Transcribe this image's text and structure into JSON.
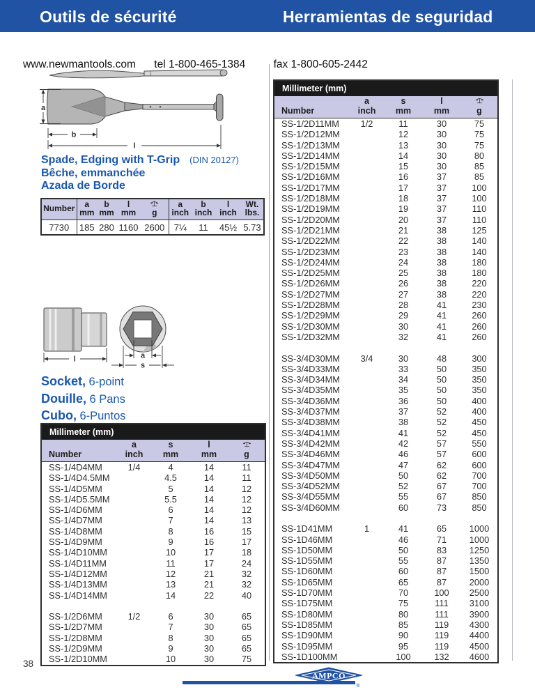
{
  "header": {
    "title_left": "Outils de sécurité",
    "title_right": "Herramientas de seguridad"
  },
  "contact": {
    "website": "www.newmantools.com",
    "tel": "tel 1-800-465-1384",
    "fax": "fax 1-800-605-2442"
  },
  "spade": {
    "title": "Spade, Edging with T-Grip",
    "din": "(DIN 20127)",
    "subtitle_fr": "Bêche, emmanchée",
    "subtitle_es": "Azada de Borde",
    "diagram_labels": {
      "a": "a",
      "b": "b",
      "l": "l"
    },
    "table": {
      "cols": [
        {
          "top": "",
          "bottom": "Number"
        },
        {
          "top": "a",
          "bottom": "mm"
        },
        {
          "top": "b",
          "bottom": "mm"
        },
        {
          "top": "l",
          "bottom": "mm"
        },
        {
          "icon": "scale-icon",
          "bottom": "g"
        },
        {
          "top": "a",
          "bottom": "inch"
        },
        {
          "top": "b",
          "bottom": "inch"
        },
        {
          "top": "l",
          "bottom": "inch"
        },
        {
          "top": "Wt.",
          "bottom": "lbs."
        }
      ],
      "rows": [
        [
          "7730",
          "185",
          "280",
          "1160",
          "2600",
          "7¼",
          "11",
          "45½",
          "5.73"
        ]
      ]
    }
  },
  "socket": {
    "lines": [
      {
        "bold": "Socket,",
        "rest": "6-point"
      },
      {
        "bold": "Douille,",
        "rest": "6 Pans"
      },
      {
        "bold": "Cubo,",
        "rest": "6-Puntos"
      }
    ],
    "diagram_labels": {
      "l": "l",
      "a": "a",
      "s": "s"
    }
  },
  "left_table": {
    "band": "Millimeter (mm)",
    "cols": [
      {
        "top": "",
        "bottom": "Number",
        "align": "left"
      },
      {
        "top": "a",
        "bottom": "inch"
      },
      {
        "top": "s",
        "bottom": "mm"
      },
      {
        "top": "l",
        "bottom": "mm"
      },
      {
        "icon": "scale-icon",
        "bottom": "g"
      }
    ],
    "rows": [
      [
        "SS-1/4D4MM",
        "1/4",
        "4",
        "14",
        "11"
      ],
      [
        "SS-1/4D4.5MM",
        "",
        "4.5",
        "14",
        "11"
      ],
      [
        "SS-1/4D5MM",
        "",
        "5",
        "14",
        "12"
      ],
      [
        "SS-1/4D5.5MM",
        "",
        "5.5",
        "14",
        "12"
      ],
      [
        "SS-1/4D6MM",
        "",
        "6",
        "14",
        "12"
      ],
      [
        "SS-1/4D7MM",
        "",
        "7",
        "14",
        "13"
      ],
      [
        "SS-1/4D8MM",
        "",
        "8",
        "16",
        "15"
      ],
      [
        "SS-1/4D9MM",
        "",
        "9",
        "16",
        "17"
      ],
      [
        "SS-1/4D10MM",
        "",
        "10",
        "17",
        "18"
      ],
      [
        "SS-1/4D11MM",
        "",
        "11",
        "17",
        "24"
      ],
      [
        "SS-1/4D12MM",
        "",
        "12",
        "21",
        "32"
      ],
      [
        "SS-1/4D13MM",
        "",
        "13",
        "21",
        "32"
      ],
      [
        "SS-1/4D14MM",
        "",
        "14",
        "22",
        "40"
      ],
      [
        "",
        "",
        "",
        "",
        ""
      ],
      [
        "SS-1/2D6MM",
        "1/2",
        "6",
        "30",
        "65"
      ],
      [
        "SS-1/2D7MM",
        "",
        "7",
        "30",
        "65"
      ],
      [
        "SS-1/2D8MM",
        "",
        "8",
        "30",
        "65"
      ],
      [
        "SS-1/2D9MM",
        "",
        "9",
        "30",
        "65"
      ],
      [
        "SS-1/2D10MM",
        "",
        "10",
        "30",
        "75"
      ]
    ]
  },
  "right_table": {
    "band": "Millimeter (mm)",
    "cols": [
      {
        "top": "",
        "bottom": "Number",
        "align": "left"
      },
      {
        "top": "a",
        "bottom": "inch"
      },
      {
        "top": "s",
        "bottom": "mm"
      },
      {
        "top": "l",
        "bottom": "mm"
      },
      {
        "icon": "scale-icon",
        "bottom": "g"
      }
    ],
    "rows": [
      [
        "SS-1/2D11MM",
        "1/2",
        "11",
        "30",
        "75"
      ],
      [
        "SS-1/2D12MM",
        "",
        "12",
        "30",
        "75"
      ],
      [
        "SS-1/2D13MM",
        "",
        "13",
        "30",
        "75"
      ],
      [
        "SS-1/2D14MM",
        "",
        "14",
        "30",
        "80"
      ],
      [
        "SS-1/2D15MM",
        "",
        "15",
        "30",
        "85"
      ],
      [
        "SS-1/2D16MM",
        "",
        "16",
        "37",
        "85"
      ],
      [
        "SS-1/2D17MM",
        "",
        "17",
        "37",
        "100"
      ],
      [
        "SS-1/2D18MM",
        "",
        "18",
        "37",
        "100"
      ],
      [
        "SS-1/2D19MM",
        "",
        "19",
        "37",
        "110"
      ],
      [
        "SS-1/2D20MM",
        "",
        "20",
        "37",
        "110"
      ],
      [
        "SS-1/2D21MM",
        "",
        "21",
        "38",
        "125"
      ],
      [
        "SS-1/2D22MM",
        "",
        "22",
        "38",
        "140"
      ],
      [
        "SS-1/2D23MM",
        "",
        "23",
        "38",
        "140"
      ],
      [
        "SS-1/2D24MM",
        "",
        "24",
        "38",
        "180"
      ],
      [
        "SS-1/2D25MM",
        "",
        "25",
        "38",
        "180"
      ],
      [
        "SS-1/2D26MM",
        "",
        "26",
        "38",
        "220"
      ],
      [
        "SS-1/2D27MM",
        "",
        "27",
        "38",
        "220"
      ],
      [
        "SS-1/2D28MM",
        "",
        "28",
        "41",
        "230"
      ],
      [
        "SS-1/2D29MM",
        "",
        "29",
        "41",
        "260"
      ],
      [
        "SS-1/2D30MM",
        "",
        "30",
        "41",
        "260"
      ],
      [
        "SS-1/2D32MM",
        "",
        "32",
        "41",
        "260"
      ],
      [
        "",
        "",
        "",
        "",
        ""
      ],
      [
        "SS-3/4D30MM",
        "3/4",
        "30",
        "48",
        "300"
      ],
      [
        "SS-3/4D33MM",
        "",
        "33",
        "50",
        "350"
      ],
      [
        "SS-3/4D34MM",
        "",
        "34",
        "50",
        "350"
      ],
      [
        "SS-3/4D35MM",
        "",
        "35",
        "50",
        "350"
      ],
      [
        "SS-3/4D36MM",
        "",
        "36",
        "50",
        "400"
      ],
      [
        "SS-3/4D37MM",
        "",
        "37",
        "52",
        "400"
      ],
      [
        "SS-3/4D38MM",
        "",
        "38",
        "52",
        "450"
      ],
      [
        "SS-3/4D41MM",
        "",
        "41",
        "52",
        "450"
      ],
      [
        "SS-3/4D42MM",
        "",
        "42",
        "57",
        "550"
      ],
      [
        "SS-3/4D46MM",
        "",
        "46",
        "57",
        "600"
      ],
      [
        "SS-3/4D47MM",
        "",
        "47",
        "62",
        "600"
      ],
      [
        "SS-3/4D50MM",
        "",
        "50",
        "62",
        "700"
      ],
      [
        "SS-3/4D52MM",
        "",
        "52",
        "67",
        "700"
      ],
      [
        "SS-3/4D55MM",
        "",
        "55",
        "67",
        "850"
      ],
      [
        "SS-3/4D60MM",
        "",
        "60",
        "73",
        "850"
      ],
      [
        "",
        "",
        "",
        "",
        ""
      ],
      [
        "SS-1D41MM",
        "1",
        "41",
        "65",
        "1000"
      ],
      [
        "SS-1D46MM",
        "",
        "46",
        "71",
        "1000"
      ],
      [
        "SS-1D50MM",
        "",
        "50",
        "83",
        "1250"
      ],
      [
        "SS-1D55MM",
        "",
        "55",
        "87",
        "1350"
      ],
      [
        "SS-1D60MM",
        "",
        "60",
        "87",
        "1500"
      ],
      [
        "SS-1D65MM",
        "",
        "65",
        "87",
        "2000"
      ],
      [
        "SS-1D70MM",
        "",
        "70",
        "100",
        "2500"
      ],
      [
        "SS-1D75MM",
        "",
        "75",
        "111",
        "3100"
      ],
      [
        "SS-1D80MM",
        "",
        "80",
        "111",
        "3900"
      ],
      [
        "SS-1D85MM",
        "",
        "85",
        "119",
        "4300"
      ],
      [
        "SS-1D90MM",
        "",
        "90",
        "119",
        "4400"
      ],
      [
        "SS-1D95MM",
        "",
        "95",
        "119",
        "4500"
      ],
      [
        "SS-1D100MM",
        "",
        "100",
        "132",
        "4600"
      ]
    ]
  },
  "footer": {
    "page_number": "38",
    "logo_text": "AMPCO",
    "reg": "®"
  },
  "colors": {
    "header_blue": "#2153a4",
    "accent_blue": "#1a58ad",
    "table_header_lavender": "#c9c9e6",
    "band_black": "#1a1a1a"
  }
}
